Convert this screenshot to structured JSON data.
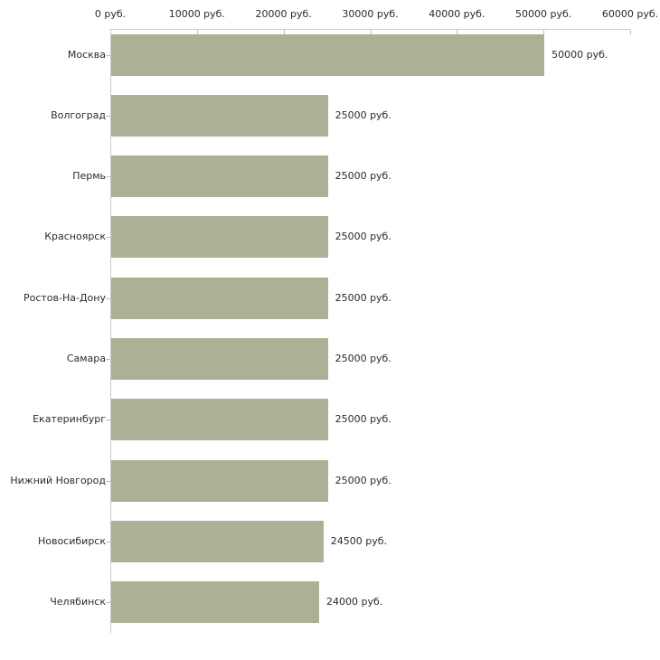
{
  "chart_data": {
    "type": "bar",
    "orientation": "horizontal",
    "title": "",
    "xlabel": "",
    "ylabel": "",
    "grid": false,
    "legend": false,
    "xlim": [
      0,
      60000
    ],
    "x_ticks": [
      0,
      10000,
      20000,
      30000,
      40000,
      50000,
      60000
    ],
    "x_tick_labels": [
      "0 руб.",
      "10000 руб.",
      "20000 руб.",
      "30000 руб.",
      "40000 руб.",
      "50000 руб.",
      "60000 руб."
    ],
    "categories": [
      "Москва",
      "Волгоград",
      "Пермь",
      "Красноярск",
      "Ростов-На-Дону",
      "Самара",
      "Екатеринбург",
      "Нижний Новгород",
      "Новосибирск",
      "Челябинск"
    ],
    "values": [
      50000,
      25000,
      25000,
      25000,
      25000,
      25000,
      25000,
      25000,
      24500,
      24000
    ],
    "value_labels": [
      "50000 руб.",
      "25000 руб.",
      "25000 руб.",
      "25000 руб.",
      "25000 руб.",
      "25000 руб.",
      "25000 руб.",
      "25000 руб.",
      "24500 руб.",
      "24000 руб."
    ],
    "colors": {
      "bar": "#acb095",
      "axis_line": "#c9c9c9",
      "tick_mark": "#c3c59e",
      "text": "#2b2b2b",
      "background": "#ffffff"
    }
  }
}
